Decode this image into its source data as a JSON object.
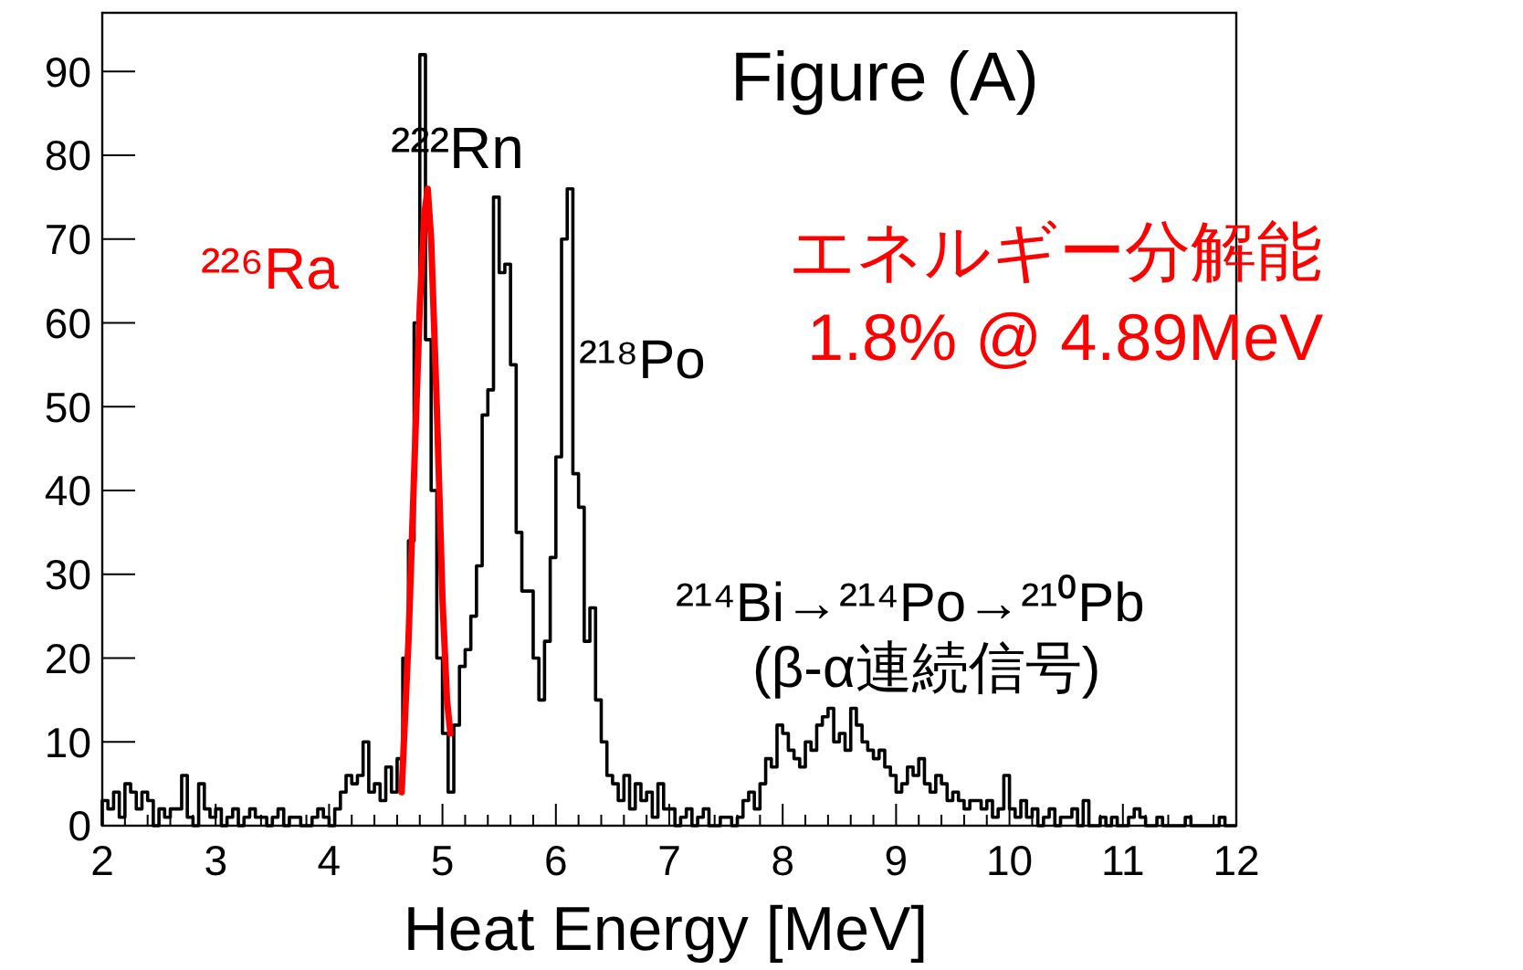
{
  "chart_data": {
    "type": "histogram",
    "xlabel": "Heat Energy [MeV]",
    "xlim": [
      2,
      12
    ],
    "xticks": [
      2,
      3,
      4,
      5,
      6,
      7,
      8,
      9,
      10,
      11,
      12
    ],
    "ylim": [
      0,
      97
    ],
    "yticks": [
      0,
      10,
      20,
      30,
      40,
      50,
      60,
      70,
      80,
      90
    ],
    "grid": false,
    "bins": [
      2.0,
      2.05,
      2.1,
      2.15,
      2.2,
      2.25,
      2.3,
      2.35,
      2.4,
      2.45,
      2.5,
      2.55,
      2.6,
      2.65,
      2.7,
      2.75,
      2.8,
      2.85,
      2.9,
      2.95,
      3.0,
      3.05,
      3.1,
      3.15,
      3.2,
      3.25,
      3.3,
      3.35,
      3.4,
      3.45,
      3.5,
      3.55,
      3.6,
      3.65,
      3.7,
      3.75,
      3.8,
      3.85,
      3.9,
      3.95,
      4.0,
      4.05,
      4.1,
      4.15,
      4.2,
      4.25,
      4.3,
      4.35,
      4.4,
      4.45,
      4.5,
      4.55,
      4.6,
      4.65,
      4.7,
      4.75,
      4.8,
      4.85,
      4.9,
      4.95,
      5.0,
      5.05,
      5.1,
      5.15,
      5.2,
      5.25,
      5.3,
      5.35,
      5.4,
      5.45,
      5.5,
      5.55,
      5.6,
      5.65,
      5.7,
      5.75,
      5.8,
      5.85,
      5.9,
      5.95,
      6.0,
      6.05,
      6.1,
      6.15,
      6.2,
      6.25,
      6.3,
      6.35,
      6.4,
      6.45,
      6.5,
      6.55,
      6.6,
      6.65,
      6.7,
      6.75,
      6.8,
      6.85,
      6.9,
      6.95,
      7.0,
      7.05,
      7.1,
      7.15,
      7.2,
      7.25,
      7.3,
      7.35,
      7.4,
      7.45,
      7.5,
      7.55,
      7.6,
      7.65,
      7.7,
      7.75,
      7.8,
      7.85,
      7.9,
      7.95,
      8.0,
      8.05,
      8.1,
      8.15,
      8.2,
      8.25,
      8.3,
      8.35,
      8.4,
      8.45,
      8.5,
      8.55,
      8.6,
      8.65,
      8.7,
      8.75,
      8.8,
      8.85,
      8.9,
      8.95,
      9.0,
      9.05,
      9.1,
      9.15,
      9.2,
      9.25,
      9.3,
      9.35,
      9.4,
      9.45,
      9.5,
      9.55,
      9.6,
      9.65,
      9.7,
      9.75,
      9.8,
      9.85,
      9.9,
      9.95,
      10.0,
      10.05,
      10.1,
      10.15,
      10.2,
      10.25,
      10.3,
      10.35,
      10.4,
      10.45,
      10.5,
      10.55,
      10.6,
      10.65,
      10.7,
      10.75,
      10.8,
      10.85,
      10.9,
      10.95,
      11.0,
      11.05,
      11.1,
      11.15,
      11.2,
      11.25,
      11.3,
      11.35,
      11.4,
      11.45,
      11.5,
      11.55,
      11.6,
      11.65,
      11.7,
      11.75,
      11.8,
      11.85,
      11.9,
      11.95,
      12.0
    ],
    "series": [
      {
        "type": "histogram",
        "color": "#000000",
        "values": [
          3,
          2,
          4,
          1,
          5,
          4,
          2,
          4,
          3,
          0,
          2,
          1,
          2,
          2,
          6,
          1,
          0,
          5,
          2,
          1,
          2,
          0,
          1,
          2,
          0,
          1,
          2,
          1,
          1,
          0,
          1,
          2,
          0,
          1,
          1,
          0,
          0,
          1,
          2,
          1,
          0,
          2,
          4,
          6,
          5,
          6,
          10,
          4,
          5,
          3,
          7,
          4,
          8,
          20,
          34,
          60,
          92,
          58,
          40,
          20,
          11,
          4,
          12,
          19,
          21,
          25,
          31,
          49,
          52,
          75,
          66,
          67,
          55,
          35,
          28,
          28,
          20,
          15,
          22,
          32,
          44,
          70,
          76,
          42,
          38,
          22,
          26,
          15,
          10,
          6,
          5,
          3,
          6,
          2,
          5,
          3,
          4,
          1,
          5,
          2,
          2,
          0,
          1,
          2,
          0,
          1,
          2,
          0,
          0,
          1,
          1,
          0,
          1,
          3,
          4,
          2,
          5,
          8,
          7,
          12,
          11,
          9,
          8,
          7,
          10,
          9,
          12,
          13,
          14,
          10,
          11,
          9,
          14,
          12,
          10,
          9,
          8,
          9,
          7,
          6,
          4,
          5,
          7,
          6,
          8,
          5,
          4,
          6,
          5,
          3,
          4,
          3,
          2,
          3,
          3,
          2,
          3,
          1,
          2,
          6,
          2,
          1,
          3,
          1,
          2,
          0,
          1,
          2,
          0,
          1,
          1,
          2,
          0,
          3,
          0,
          0,
          1,
          0,
          1,
          0,
          0,
          1,
          2,
          1,
          0,
          0,
          1,
          0,
          0,
          0,
          0,
          1,
          0,
          0,
          0,
          0,
          0,
          1,
          0,
          0
        ]
      },
      {
        "type": "line",
        "color": "#ff0000",
        "x": [
          4.64,
          4.7,
          4.75,
          4.8,
          4.84,
          4.87,
          4.9,
          4.95,
          5.0,
          5.04,
          5.07
        ],
        "values": [
          4,
          22,
          42,
          62,
          73,
          76,
          70,
          50,
          27,
          15,
          11
        ]
      }
    ],
    "annotations": [
      "Figure (A)",
      "²²⁶Ra",
      "²²²Rn",
      "²¹⁸Po",
      "²¹⁴Bi→²¹⁴Po→²¹⁰Pb",
      "(β-α連続信号)",
      "エネルギー分解能",
      "1.8% @ 4.89MeV"
    ]
  }
}
